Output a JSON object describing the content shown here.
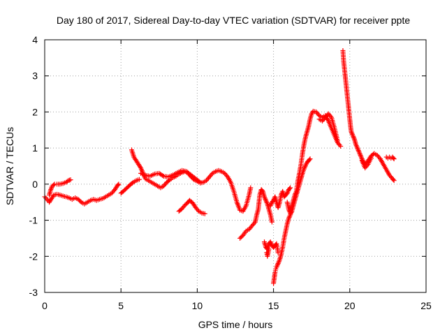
{
  "chart_data": {
    "type": "scatter",
    "title": "Day 180 of 2017, Sidereal Day-to-day VTEC variation (SDTVAR) for receiver ppte",
    "xlabel": "GPS time / hours",
    "ylabel": "SDTVAR / TECUs",
    "xlim": [
      0,
      25
    ],
    "ylim": [
      -3,
      4
    ],
    "xticks": [
      0,
      5,
      10,
      15,
      20,
      25
    ],
    "yticks": [
      -3,
      -2,
      -1,
      0,
      1,
      2,
      3,
      4
    ],
    "xtick_labels": [
      "0",
      "5",
      "10",
      "15",
      "20",
      "25"
    ],
    "ytick_labels": [
      "-3",
      "-2",
      "-1",
      "0",
      "1",
      "2",
      "3",
      "4"
    ],
    "grid": true,
    "marker": "+",
    "color": "#ff0000",
    "series": [
      {
        "name": "SDTVAR",
        "segments": [
          [
            [
              0.0,
              -0.35
            ],
            [
              0.15,
              -0.42
            ],
            [
              0.3,
              -0.5
            ],
            [
              0.45,
              -0.4
            ],
            [
              0.6,
              -0.3
            ],
            [
              0.8,
              -0.28
            ],
            [
              1.0,
              -0.3
            ],
            [
              1.2,
              -0.33
            ],
            [
              1.4,
              -0.35
            ],
            [
              1.6,
              -0.38
            ],
            [
              1.8,
              -0.42
            ],
            [
              2.0,
              -0.38
            ],
            [
              2.2,
              -0.42
            ],
            [
              2.4,
              -0.5
            ],
            [
              2.6,
              -0.55
            ],
            [
              2.8,
              -0.5
            ],
            [
              3.0,
              -0.45
            ],
            [
              3.2,
              -0.42
            ],
            [
              3.4,
              -0.45
            ],
            [
              3.6,
              -0.42
            ],
            [
              3.8,
              -0.4
            ],
            [
              4.0,
              -0.35
            ],
            [
              4.2,
              -0.3
            ],
            [
              4.4,
              -0.25
            ],
            [
              4.6,
              -0.15
            ],
            [
              4.75,
              -0.05
            ],
            [
              4.85,
              0.0
            ]
          ],
          [
            [
              0.3,
              -0.3
            ],
            [
              0.4,
              -0.15
            ],
            [
              0.5,
              -0.05
            ],
            [
              0.65,
              0.0
            ],
            [
              0.8,
              0.0
            ],
            [
              1.0,
              0.0
            ],
            [
              1.2,
              0.02
            ],
            [
              1.4,
              0.05
            ],
            [
              1.55,
              0.1
            ],
            [
              1.7,
              0.12
            ]
          ],
          [
            [
              5.0,
              -0.25
            ],
            [
              5.2,
              -0.18
            ],
            [
              5.4,
              -0.1
            ],
            [
              5.6,
              -0.02
            ],
            [
              5.8,
              0.05
            ],
            [
              6.0,
              0.1
            ],
            [
              6.2,
              0.13
            ]
          ],
          [
            [
              5.7,
              0.95
            ],
            [
              5.85,
              0.75
            ],
            [
              6.0,
              0.65
            ],
            [
              6.15,
              0.55
            ],
            [
              6.3,
              0.45
            ],
            [
              6.45,
              0.3
            ],
            [
              6.6,
              0.15
            ],
            [
              6.8,
              0.1
            ],
            [
              7.0,
              0.05
            ],
            [
              7.2,
              0.0
            ],
            [
              7.4,
              -0.05
            ],
            [
              7.6,
              -0.1
            ],
            [
              7.8,
              -0.05
            ],
            [
              8.0,
              0.05
            ],
            [
              8.2,
              0.12
            ],
            [
              8.4,
              0.18
            ],
            [
              8.6,
              0.22
            ],
            [
              8.8,
              0.28
            ],
            [
              9.0,
              0.32
            ],
            [
              9.2,
              0.35
            ],
            [
              9.4,
              0.3
            ],
            [
              9.6,
              0.2
            ],
            [
              9.8,
              0.12
            ],
            [
              10.0,
              0.08
            ],
            [
              10.2,
              0.03
            ],
            [
              10.4,
              0.05
            ],
            [
              10.6,
              0.1
            ],
            [
              10.8,
              0.2
            ],
            [
              11.0,
              0.3
            ],
            [
              11.2,
              0.35
            ],
            [
              11.4,
              0.38
            ],
            [
              11.6,
              0.35
            ],
            [
              11.8,
              0.3
            ],
            [
              12.0,
              0.2
            ],
            [
              12.2,
              0.05
            ],
            [
              12.4,
              -0.2
            ],
            [
              12.6,
              -0.5
            ],
            [
              12.8,
              -0.72
            ],
            [
              13.0,
              -0.75
            ],
            [
              13.2,
              -0.6
            ],
            [
              13.4,
              -0.3
            ],
            [
              13.5,
              -0.1
            ]
          ],
          [
            [
              6.3,
              0.3
            ],
            [
              6.6,
              0.25
            ],
            [
              6.9,
              0.22
            ],
            [
              7.2,
              0.28
            ],
            [
              7.5,
              0.3
            ],
            [
              7.8,
              0.22
            ],
            [
              8.1,
              0.2
            ],
            [
              8.4,
              0.25
            ],
            [
              8.7,
              0.32
            ],
            [
              9.0,
              0.38
            ],
            [
              9.3,
              0.35
            ],
            [
              9.6,
              0.25
            ],
            [
              9.9,
              0.15
            ],
            [
              10.2,
              0.05
            ]
          ],
          [
            [
              8.8,
              -0.75
            ],
            [
              9.0,
              -0.68
            ],
            [
              9.2,
              -0.58
            ],
            [
              9.4,
              -0.5
            ],
            [
              9.5,
              -0.45
            ],
            [
              9.7,
              -0.52
            ],
            [
              9.9,
              -0.65
            ],
            [
              10.1,
              -0.75
            ],
            [
              10.3,
              -0.8
            ],
            [
              10.5,
              -0.82
            ]
          ],
          [
            [
              12.8,
              -1.5
            ],
            [
              13.0,
              -1.42
            ],
            [
              13.2,
              -1.3
            ],
            [
              13.4,
              -1.25
            ],
            [
              13.6,
              -1.15
            ],
            [
              13.8,
              -1.05
            ],
            [
              13.9,
              -0.85
            ],
            [
              14.0,
              -0.7
            ],
            [
              14.05,
              -0.5
            ],
            [
              14.1,
              -0.3
            ],
            [
              14.2,
              -0.15
            ],
            [
              14.3,
              -0.2
            ],
            [
              14.4,
              -0.35
            ],
            [
              14.5,
              -0.45
            ],
            [
              14.6,
              -0.55
            ],
            [
              14.7,
              -0.7
            ],
            [
              14.8,
              -0.85
            ],
            [
              14.9,
              -1.05
            ]
          ],
          [
            [
              14.4,
              -1.6
            ],
            [
              14.5,
              -1.75
            ],
            [
              14.6,
              -1.8
            ],
            [
              14.7,
              -1.65
            ],
            [
              14.8,
              -1.6
            ],
            [
              14.9,
              -1.7
            ],
            [
              15.0,
              -1.75
            ],
            [
              15.1,
              -1.7
            ],
            [
              15.2,
              -1.65
            ],
            [
              15.3,
              -1.9
            ]
          ],
          [
            [
              14.55,
              -1.9
            ],
            [
              14.6,
              -2.0
            ],
            [
              14.7,
              -1.8
            ]
          ],
          [
            [
              15.0,
              -2.75
            ],
            [
              15.05,
              -2.6
            ],
            [
              15.1,
              -2.45
            ],
            [
              15.15,
              -2.35
            ],
            [
              15.2,
              -2.3
            ],
            [
              15.3,
              -2.2
            ],
            [
              15.4,
              -2.1
            ],
            [
              15.5,
              -1.95
            ],
            [
              15.6,
              -1.75
            ],
            [
              15.7,
              -1.5
            ],
            [
              15.8,
              -1.3
            ],
            [
              15.9,
              -1.1
            ],
            [
              16.0,
              -0.95
            ],
            [
              16.1,
              -0.85
            ],
            [
              16.2,
              -0.75
            ],
            [
              16.3,
              -0.6
            ],
            [
              16.4,
              -0.45
            ],
            [
              16.5,
              -0.3
            ],
            [
              16.6,
              -0.15
            ],
            [
              16.7,
              0.0
            ],
            [
              16.8,
              0.15
            ],
            [
              16.9,
              0.3
            ],
            [
              17.0,
              0.42
            ],
            [
              17.1,
              0.52
            ],
            [
              17.2,
              0.6
            ],
            [
              17.3,
              0.65
            ],
            [
              17.4,
              0.7
            ]
          ],
          [
            [
              14.8,
              -0.6
            ],
            [
              14.9,
              -0.5
            ],
            [
              15.0,
              -0.45
            ],
            [
              15.1,
              -0.35
            ],
            [
              15.2,
              -0.5
            ],
            [
              15.3,
              -0.65
            ],
            [
              15.4,
              -0.5
            ],
            [
              15.5,
              -0.3
            ],
            [
              15.6,
              -0.2
            ],
            [
              15.7,
              -0.35
            ],
            [
              15.8,
              -0.3
            ],
            [
              15.9,
              -0.25
            ],
            [
              16.0,
              -0.15
            ],
            [
              16.1,
              -0.1
            ]
          ],
          [
            [
              15.9,
              -0.5
            ],
            [
              16.0,
              -0.7
            ],
            [
              16.1,
              -0.8
            ],
            [
              16.2,
              -0.6
            ],
            [
              16.3,
              -0.45
            ],
            [
              16.4,
              -0.3
            ],
            [
              16.5,
              -0.2
            ],
            [
              16.6,
              0.1
            ],
            [
              16.7,
              0.3
            ],
            [
              16.8,
              0.55
            ],
            [
              16.9,
              0.85
            ],
            [
              17.0,
              1.1
            ],
            [
              17.1,
              1.3
            ],
            [
              17.2,
              1.45
            ],
            [
              17.3,
              1.6
            ],
            [
              17.4,
              1.8
            ],
            [
              17.5,
              1.95
            ],
            [
              17.6,
              2.02
            ],
            [
              17.8,
              2.0
            ],
            [
              18.0,
              1.9
            ],
            [
              18.2,
              1.85
            ],
            [
              18.4,
              1.9
            ],
            [
              18.6,
              1.75
            ],
            [
              18.8,
              1.55
            ],
            [
              19.0,
              1.35
            ],
            [
              19.2,
              1.15
            ],
            [
              19.4,
              1.05
            ]
          ],
          [
            [
              18.0,
              1.8
            ],
            [
              18.2,
              1.75
            ],
            [
              18.4,
              1.85
            ],
            [
              18.6,
              1.95
            ],
            [
              18.8,
              1.85
            ],
            [
              19.0,
              1.55
            ],
            [
              19.2,
              1.2
            ]
          ],
          [
            [
              19.55,
              3.7
            ],
            [
              19.6,
              3.4
            ],
            [
              19.65,
              3.2
            ],
            [
              19.7,
              3.0
            ],
            [
              19.75,
              2.8
            ],
            [
              19.8,
              2.6
            ],
            [
              19.85,
              2.4
            ],
            [
              19.9,
              2.2
            ],
            [
              19.95,
              2.0
            ],
            [
              20.0,
              1.8
            ],
            [
              20.05,
              1.6
            ],
            [
              20.1,
              1.45
            ],
            [
              20.2,
              1.35
            ],
            [
              20.3,
              1.25
            ],
            [
              20.4,
              1.1
            ],
            [
              20.5,
              1.0
            ],
            [
              20.6,
              0.9
            ],
            [
              20.7,
              0.8
            ],
            [
              20.8,
              0.7
            ],
            [
              20.9,
              0.6
            ],
            [
              21.0,
              0.55
            ],
            [
              21.2,
              0.65
            ],
            [
              21.4,
              0.78
            ],
            [
              21.6,
              0.85
            ],
            [
              21.8,
              0.8
            ],
            [
              22.0,
              0.7
            ],
            [
              22.2,
              0.55
            ],
            [
              22.4,
              0.4
            ],
            [
              22.6,
              0.25
            ],
            [
              22.8,
              0.15
            ],
            [
              22.9,
              0.1
            ]
          ],
          [
            [
              20.8,
              0.65
            ],
            [
              21.0,
              0.45
            ],
            [
              21.2,
              0.55
            ],
            [
              21.4,
              0.72
            ]
          ],
          [
            [
              22.4,
              0.75
            ],
            [
              22.5,
              0.72
            ],
            [
              22.6,
              0.75
            ],
            [
              22.7,
              0.72
            ],
            [
              22.8,
              0.75
            ],
            [
              22.9,
              0.7
            ]
          ]
        ]
      }
    ]
  }
}
